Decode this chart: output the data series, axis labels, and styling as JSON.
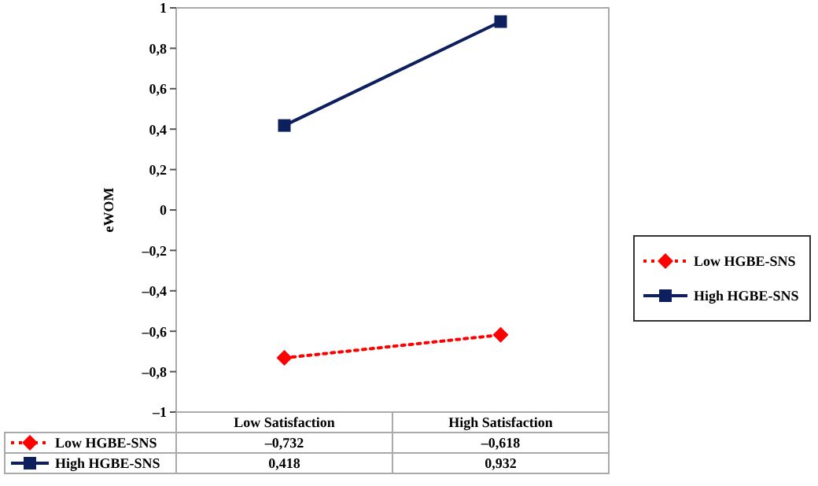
{
  "chart_data": {
    "type": "line",
    "ylabel": "eWOM",
    "categories": [
      "Low Satisfaction",
      "High Satisfaction"
    ],
    "series": [
      {
        "name": "Low HGBE-SNS",
        "color": "#ff0000",
        "values": [
          -0.732,
          -0.618
        ],
        "value_labels": [
          "–0,732",
          "–0,618"
        ],
        "marker": "diamond",
        "line_style": "dotted"
      },
      {
        "name": "High HGBE-SNS",
        "color": "#0d1f5c",
        "values": [
          0.418,
          0.932
        ],
        "value_labels": [
          "0,418",
          "0,932"
        ],
        "marker": "square",
        "line_style": "solid"
      }
    ],
    "ylim": [
      -1,
      1
    ],
    "yticks": [
      {
        "value": -1,
        "label": "–1"
      },
      {
        "value": -0.8,
        "label": "–0,8"
      },
      {
        "value": -0.6,
        "label": "–0,6"
      },
      {
        "value": -0.4,
        "label": "–0,4"
      },
      {
        "value": -0.2,
        "label": "–0,2"
      },
      0,
      {
        "value": 0.2,
        "label": "0,2"
      },
      {
        "value": 0.4,
        "label": "0,4"
      },
      {
        "value": 0.6,
        "label": "0,6"
      },
      {
        "value": 0.8,
        "label": "0,8"
      },
      1
    ],
    "grid": false,
    "legend": "right"
  }
}
